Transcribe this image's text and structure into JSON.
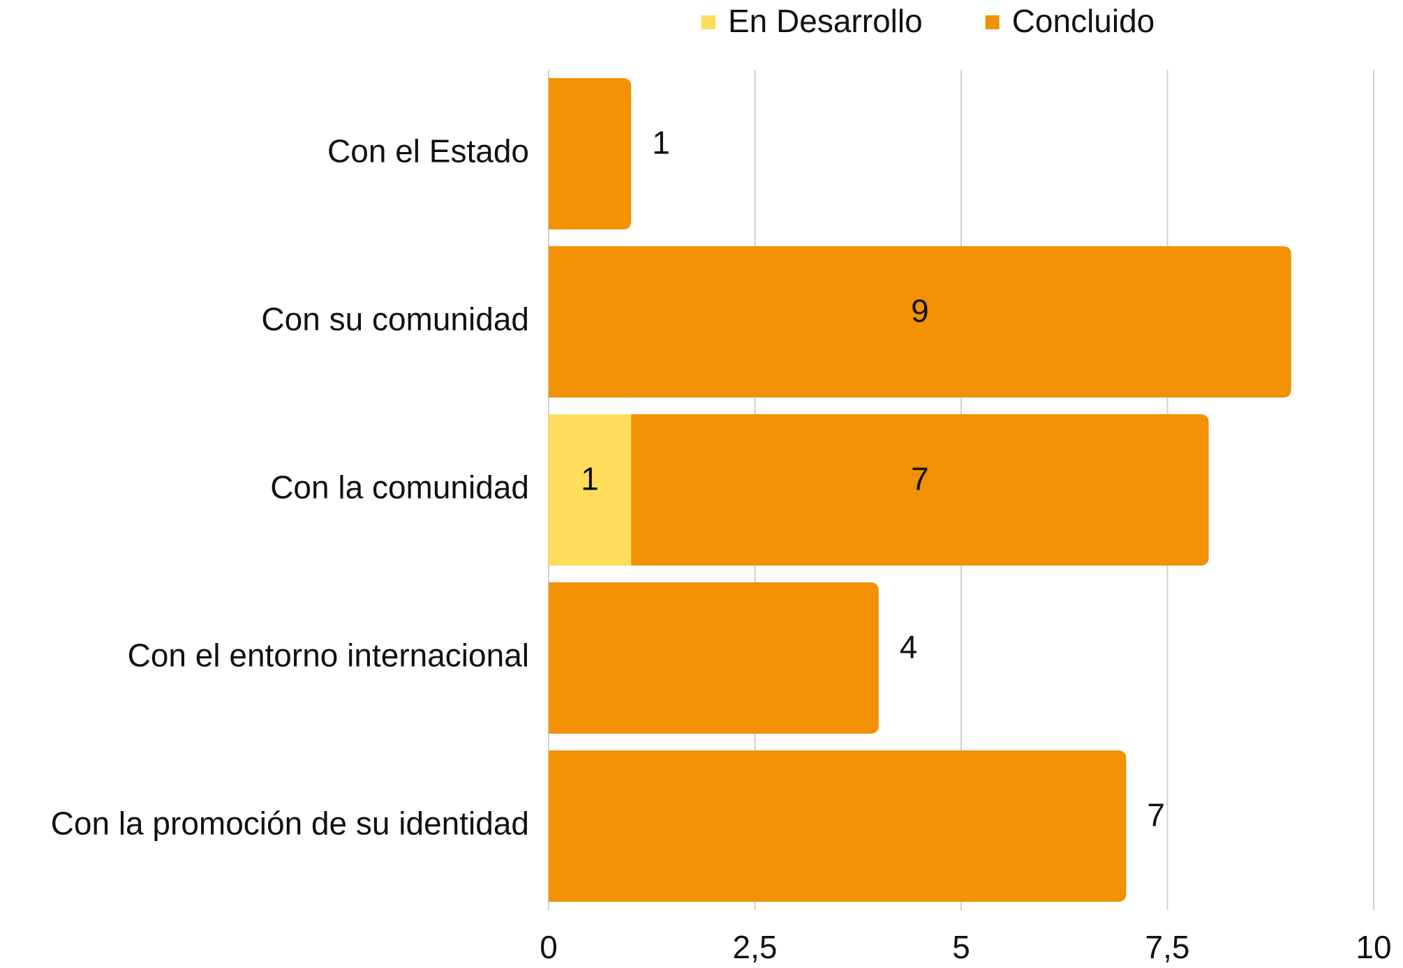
{
  "chart_data": {
    "type": "bar",
    "orientation": "horizontal",
    "stacked": true,
    "categories": [
      "Con el Estado",
      "Con su comunidad",
      "Con la comunidad",
      "Con el entorno internacional",
      "Con la promoción de su identidad"
    ],
    "series": [
      {
        "name": "En Desarrollo",
        "color": "#ffdd5a",
        "values": [
          null,
          null,
          1,
          null,
          null
        ]
      },
      {
        "name": "Concluido",
        "color": "#f29104",
        "values": [
          1,
          9,
          7,
          4,
          7
        ]
      }
    ],
    "xlim": [
      0,
      10
    ],
    "xticks": [
      0,
      {
        "value": 2.5,
        "label": "2,5"
      },
      5,
      {
        "value": 7.5,
        "label": "7,5"
      },
      10
    ],
    "grid": true,
    "legend": "top"
  }
}
